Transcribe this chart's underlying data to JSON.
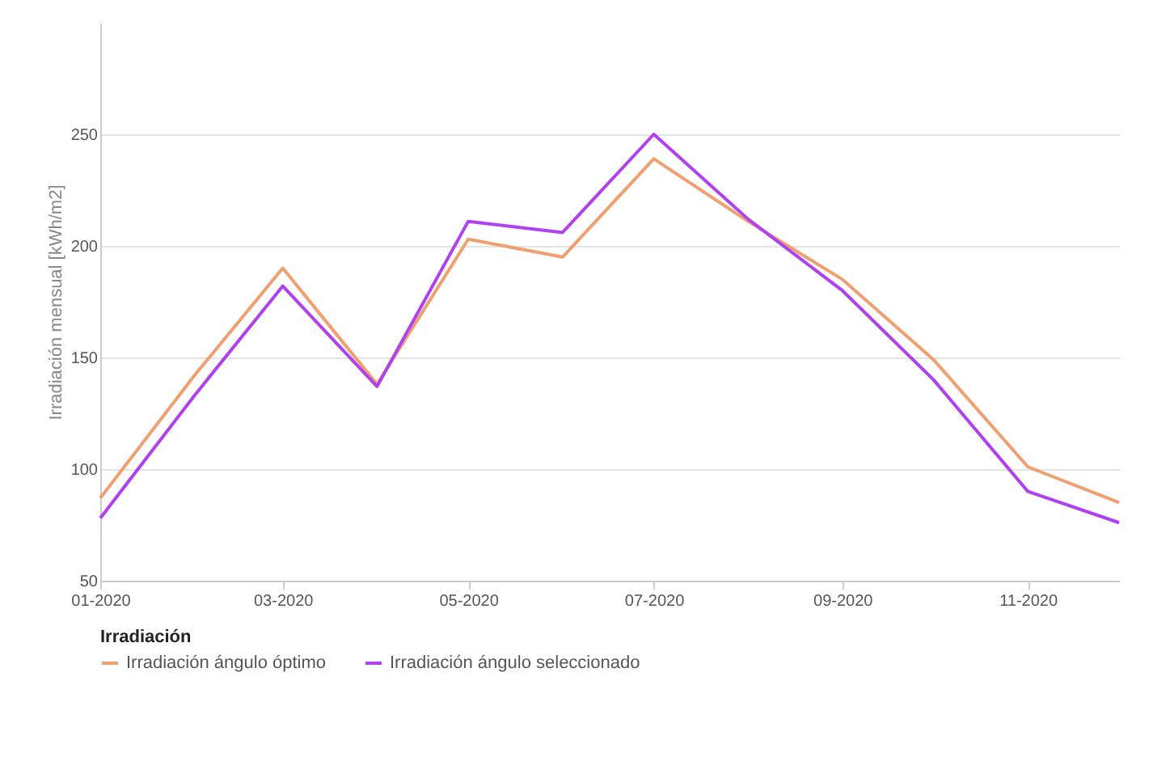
{
  "chart_data": {
    "type": "line",
    "ylabel": "Irradiación mensual [kWh/m2]",
    "legend_title": "Irradiación",
    "x": [
      "2020-01",
      "2020-02",
      "2020-03",
      "2020-04",
      "2020-05",
      "2020-06",
      "2020-07",
      "2020-08",
      "2020-09",
      "2020-10",
      "2020-11",
      "2020-12"
    ],
    "series": [
      {
        "name": "Irradiación ángulo óptimo",
        "color": "#f0a070",
        "values": [
          87,
          142,
          190,
          138,
          203,
          195,
          239,
          211,
          185,
          149,
          101,
          85
        ]
      },
      {
        "name": "Irradiación ángulo seleccionado",
        "color": "#b040f0",
        "values": [
          78,
          133,
          182,
          137,
          211,
          206,
          250,
          212,
          180,
          140,
          90,
          76
        ]
      }
    ],
    "xlim": [
      "2020-01",
      "2020-12"
    ],
    "xticks": [
      {
        "value": "2020-01",
        "label": "01-2020"
      },
      {
        "value": "2020-03",
        "label": "03-2020"
      },
      {
        "value": "2020-05",
        "label": "05-2020"
      },
      {
        "value": "2020-07",
        "label": "07-2020"
      },
      {
        "value": "2020-09",
        "label": "09-2020"
      },
      {
        "value": "2020-11",
        "label": "11-2020"
      }
    ],
    "ylim": [
      50,
      300
    ],
    "yticks": [
      50,
      100,
      150,
      200,
      250
    ],
    "grid": "y",
    "legend": "bottom",
    "marker": "none",
    "line_style": "solid"
  }
}
